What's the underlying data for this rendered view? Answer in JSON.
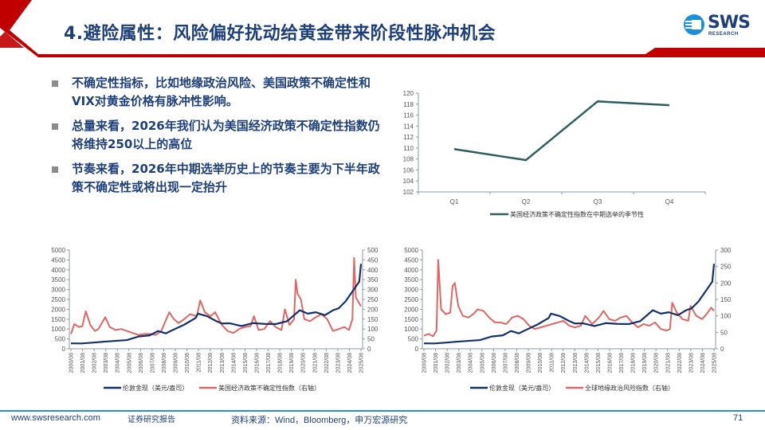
{
  "slide": {
    "title": "4.避险属性：风险偏好扰动给黄金带来阶段性脉冲机会",
    "logo": {
      "text": "SWS",
      "subtext": "RESEARCH"
    },
    "colors": {
      "accent_red": "#c00000",
      "title_blue": "#1f3f7a",
      "footer_line": "#2d8fc2",
      "navy_series": "#14306a",
      "red_series": "#e06666",
      "teal_series": "#2e5e5e"
    },
    "bullets": [
      "不确定性指标，比如地缘政治风险、美国政策不确定性和VIX对黄金价格有脉冲性影响。",
      "总量来看，2026年我们认为美国经济政策不确定性指数仍将维持250以上的高位",
      "节奏来看，2026年中期选举历史上的节奏主要为下半年政策不确定性或将出现一定抬升"
    ],
    "footer": {
      "site": "www.swsresearch.com",
      "tag": "证券研究报告",
      "source": "资料来源：Wind，Bloomberg，申万宏源研究",
      "page": "71"
    }
  },
  "chart_data": [
    {
      "id": "seasonality",
      "type": "line",
      "title": "",
      "categories": [
        "Q1",
        "Q2",
        "Q3",
        "Q4"
      ],
      "series": [
        {
          "name": "美国经济政策不确定性指数在中期选举的季节性",
          "color": "#2e5e5e",
          "values": [
            109.8,
            107.8,
            118.5,
            117.8
          ]
        }
      ],
      "ylim": [
        102,
        120
      ],
      "yticks": [
        102,
        104,
        106,
        108,
        110,
        112,
        114,
        116,
        118,
        120
      ],
      "legend_position": "bottom",
      "grid": false
    },
    {
      "id": "gold-vs-epu",
      "type": "line",
      "x_ticks": [
        "2000/08",
        "2001/08",
        "2002/08",
        "2003/08",
        "2004/08",
        "2005/08",
        "2006/08",
        "2007/08",
        "2008/08",
        "2009/08",
        "2010/08",
        "2011/08",
        "2012/08",
        "2013/08",
        "2014/08",
        "2015/08",
        "2016/08",
        "2017/08",
        "2018/08",
        "2019/08",
        "2020/08",
        "2021/08",
        "2022/08",
        "2023/08",
        "2024/08",
        "2025/08"
      ],
      "left_axis": {
        "ylim": [
          0,
          5000
        ],
        "ticks": [
          0,
          500,
          1000,
          1500,
          2000,
          2500,
          3000,
          3500,
          4000,
          4500,
          5000
        ]
      },
      "right_axis": {
        "ylim": [
          0,
          500
        ],
        "ticks": [
          0,
          50,
          100,
          150,
          200,
          250,
          300,
          350,
          400,
          450,
          500
        ]
      },
      "series": [
        {
          "name": "伦敦金现（美元/盎司）",
          "axis": "left",
          "color": "#14306a",
          "x": [
            2000.6,
            2001.5,
            2002.5,
            2003.5,
            2004.5,
            2005.5,
            2006.5,
            2007.5,
            2008.2,
            2008.9,
            2009.5,
            2010.5,
            2011.5,
            2011.7,
            2012.5,
            2013.3,
            2013.8,
            2014.5,
            2015.5,
            2016.5,
            2017.5,
            2018.5,
            2019.5,
            2020.6,
            2021.3,
            2022.0,
            2022.8,
            2023.5,
            2024.0,
            2024.6,
            2025.2,
            2025.8,
            2025.95
          ],
          "values": [
            275,
            270,
            310,
            360,
            400,
            440,
            620,
            680,
            900,
            780,
            950,
            1220,
            1560,
            1780,
            1650,
            1400,
            1280,
            1290,
            1150,
            1300,
            1260,
            1250,
            1400,
            1950,
            1780,
            1850,
            1700,
            1950,
            2050,
            2400,
            2900,
            3400,
            4300
          ]
        },
        {
          "name": "美国经济政策不确定性指数（右轴）",
          "axis": "right",
          "color": "#e06666",
          "x": [
            2000.6,
            2000.9,
            2001.3,
            2001.6,
            2001.9,
            2002.3,
            2002.7,
            2003.0,
            2003.3,
            2003.6,
            2004.0,
            2004.5,
            2005.0,
            2005.5,
            2006.0,
            2006.5,
            2007.0,
            2007.6,
            2008.0,
            2008.5,
            2008.9,
            2009.2,
            2009.6,
            2010.0,
            2010.5,
            2011.0,
            2011.6,
            2011.9,
            2012.3,
            2012.8,
            2013.2,
            2013.8,
            2014.3,
            2014.8,
            2015.3,
            2015.8,
            2016.3,
            2016.6,
            2017.0,
            2017.5,
            2018.0,
            2018.5,
            2019.0,
            2019.3,
            2019.7,
            2020.1,
            2020.25,
            2020.4,
            2020.7,
            2021.0,
            2021.5,
            2022.0,
            2022.5,
            2023.0,
            2023.5,
            2024.0,
            2024.5,
            2024.9,
            2025.2,
            2025.35,
            2025.5,
            2025.8,
            2025.95
          ],
          "values": [
            75,
            125,
            110,
            115,
            190,
            120,
            90,
            100,
            130,
            160,
            110,
            95,
            100,
            90,
            80,
            70,
            75,
            75,
            70,
            90,
            145,
            185,
            150,
            130,
            150,
            175,
            165,
            245,
            185,
            165,
            185,
            120,
            90,
            80,
            100,
            110,
            115,
            165,
            95,
            100,
            140,
            110,
            95,
            200,
            120,
            150,
            350,
            280,
            250,
            150,
            140,
            160,
            175,
            150,
            90,
            100,
            110,
            95,
            150,
            460,
            260,
            230,
            215
          ]
        }
      ],
      "legend_position": "bottom",
      "grid": false
    },
    {
      "id": "gold-vs-gpr",
      "type": "line",
      "x_ticks": [
        "2000/08",
        "2001/08",
        "2002/08",
        "2003/08",
        "2004/08",
        "2005/08",
        "2006/08",
        "2007/08",
        "2008/08",
        "2009/08",
        "2010/08",
        "2011/08",
        "2012/08",
        "2013/08",
        "2014/08",
        "2015/08",
        "2016/08",
        "2017/08",
        "2018/08",
        "2019/08",
        "2020/08",
        "2021/08",
        "2022/08",
        "2023/08",
        "2024/08",
        "2025/08"
      ],
      "left_axis": {
        "ylim": [
          0,
          5000
        ],
        "ticks": [
          0,
          500,
          1000,
          1500,
          2000,
          2500,
          3000,
          3500,
          4000,
          4500,
          5000
        ]
      },
      "right_axis": {
        "ylim": [
          0,
          300
        ],
        "ticks": [
          0,
          50,
          100,
          150,
          200,
          250,
          300
        ]
      },
      "series": [
        {
          "name": "伦敦金现（美元/盎司）",
          "axis": "left",
          "color": "#14306a",
          "x": [
            2000.6,
            2001.5,
            2002.5,
            2003.5,
            2004.5,
            2005.5,
            2006.5,
            2007.5,
            2008.2,
            2008.9,
            2009.5,
            2010.5,
            2011.5,
            2011.7,
            2012.5,
            2013.3,
            2013.8,
            2014.5,
            2015.5,
            2016.5,
            2017.5,
            2018.5,
            2019.5,
            2020.6,
            2021.3,
            2022.0,
            2022.8,
            2023.5,
            2024.0,
            2024.6,
            2025.2,
            2025.8,
            2025.95
          ],
          "values": [
            275,
            270,
            310,
            360,
            400,
            440,
            620,
            680,
            900,
            780,
            950,
            1220,
            1560,
            1780,
            1650,
            1400,
            1280,
            1290,
            1150,
            1300,
            1260,
            1250,
            1400,
            1950,
            1780,
            1850,
            1700,
            1950,
            2050,
            2400,
            2900,
            3400,
            4300
          ]
        },
        {
          "name": "全球地缘政治风险指数（右轴）",
          "axis": "right",
          "color": "#e06666",
          "x": [
            2000.6,
            2001.0,
            2001.4,
            2001.7,
            2001.85,
            2002.1,
            2002.5,
            2002.9,
            2003.1,
            2003.3,
            2003.6,
            2004.0,
            2004.5,
            2004.9,
            2005.3,
            2005.8,
            2006.3,
            2006.8,
            2007.3,
            2007.8,
            2008.3,
            2008.8,
            2009.3,
            2009.8,
            2010.3,
            2010.8,
            2011.3,
            2011.8,
            2012.3,
            2012.8,
            2013.3,
            2013.8,
            2014.3,
            2014.7,
            2015.3,
            2015.9,
            2016.3,
            2016.8,
            2017.3,
            2017.8,
            2018.3,
            2018.8,
            2019.3,
            2019.8,
            2020.3,
            2020.8,
            2021.3,
            2021.8,
            2022.1,
            2022.3,
            2022.7,
            2023.2,
            2023.7,
            2023.9,
            2024.4,
            2024.9,
            2025.3,
            2025.7,
            2025.95
          ],
          "values": [
            40,
            45,
            38,
            55,
            270,
            120,
            105,
            110,
            190,
            200,
            130,
            100,
            95,
            105,
            120,
            115,
            95,
            80,
            80,
            75,
            95,
            100,
            90,
            70,
            60,
            65,
            70,
            75,
            80,
            85,
            70,
            65,
            70,
            100,
            75,
            95,
            115,
            90,
            85,
            95,
            100,
            80,
            65,
            75,
            70,
            80,
            60,
            55,
            60,
            140,
            110,
            90,
            85,
            130,
            100,
            90,
            105,
            125,
            115
          ]
        }
      ],
      "legend_position": "bottom",
      "grid": false
    }
  ]
}
